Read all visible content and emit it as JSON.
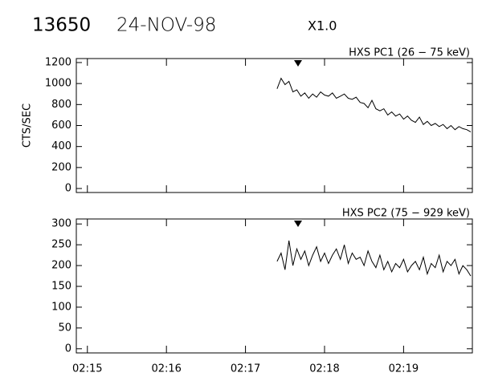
{
  "header": {
    "id": "13650",
    "date": "24-NOV-98",
    "zoom": "X1.0"
  },
  "chart_data": [
    {
      "type": "line",
      "title": "HXS PC1 (26 − 75 keV)",
      "y_label": "CTS/SEC",
      "xlim": [
        14.86,
        19.87
      ],
      "xticks": [
        15,
        16,
        17,
        18,
        19
      ],
      "ylim": [
        -38,
        1238
      ],
      "yticks": [
        0,
        200,
        400,
        600,
        800,
        1000,
        1200
      ],
      "x": [
        17.4,
        17.45,
        17.5,
        17.55,
        17.6,
        17.65,
        17.7,
        17.75,
        17.8,
        17.85,
        17.9,
        17.95,
        18,
        18.05,
        18.1,
        18.15,
        18.2,
        18.25,
        18.3,
        18.35,
        18.4,
        18.45,
        18.5,
        18.55,
        18.6,
        18.65,
        18.7,
        18.75,
        18.8,
        18.85,
        18.9,
        18.95,
        19,
        19.05,
        19.1,
        19.15,
        19.2,
        19.25,
        19.3,
        19.35,
        19.4,
        19.45,
        19.5,
        19.55,
        19.6,
        19.65,
        19.7,
        19.75,
        19.8,
        19.85
      ],
      "values": [
        950,
        1050,
        990,
        1020,
        920,
        940,
        880,
        910,
        860,
        900,
        870,
        920,
        890,
        880,
        910,
        860,
        880,
        900,
        860,
        850,
        870,
        820,
        810,
        770,
        840,
        760,
        740,
        760,
        700,
        730,
        690,
        710,
        660,
        690,
        650,
        630,
        680,
        610,
        640,
        600,
        620,
        590,
        610,
        570,
        600,
        560,
        590,
        570,
        560,
        540
      ],
      "color": "#000000"
    },
    {
      "type": "line",
      "title": "HXS PC2 (75 − 929 keV)",
      "xlim": [
        14.86,
        19.87
      ],
      "xticks": [
        {
          "value": 15,
          "label": "02:15"
        },
        {
          "value": 16,
          "label": "02:16"
        },
        {
          "value": 17,
          "label": "02:17"
        },
        {
          "value": 18,
          "label": "02:18"
        },
        {
          "value": 19,
          "label": "02:19"
        }
      ],
      "ylim": [
        -10,
        312
      ],
      "yticks": [
        0,
        50,
        100,
        150,
        200,
        250,
        300
      ],
      "x": [
        17.4,
        17.45,
        17.5,
        17.55,
        17.6,
        17.65,
        17.7,
        17.75,
        17.8,
        17.85,
        17.9,
        17.95,
        18,
        18.05,
        18.1,
        18.15,
        18.2,
        18.25,
        18.3,
        18.35,
        18.4,
        18.45,
        18.5,
        18.55,
        18.6,
        18.65,
        18.7,
        18.75,
        18.8,
        18.85,
        18.9,
        18.95,
        19,
        19.05,
        19.1,
        19.15,
        19.2,
        19.25,
        19.3,
        19.35,
        19.4,
        19.45,
        19.5,
        19.55,
        19.6,
        19.65,
        19.7,
        19.75,
        19.8,
        19.85
      ],
      "values": [
        210,
        230,
        190,
        260,
        200,
        240,
        215,
        235,
        200,
        225,
        245,
        210,
        230,
        205,
        225,
        240,
        215,
        250,
        205,
        230,
        215,
        220,
        200,
        235,
        210,
        195,
        225,
        190,
        210,
        185,
        205,
        195,
        215,
        185,
        200,
        210,
        190,
        220,
        180,
        205,
        195,
        225,
        185,
        210,
        200,
        215,
        180,
        200,
        190,
        175
      ],
      "color": "#000000"
    }
  ]
}
